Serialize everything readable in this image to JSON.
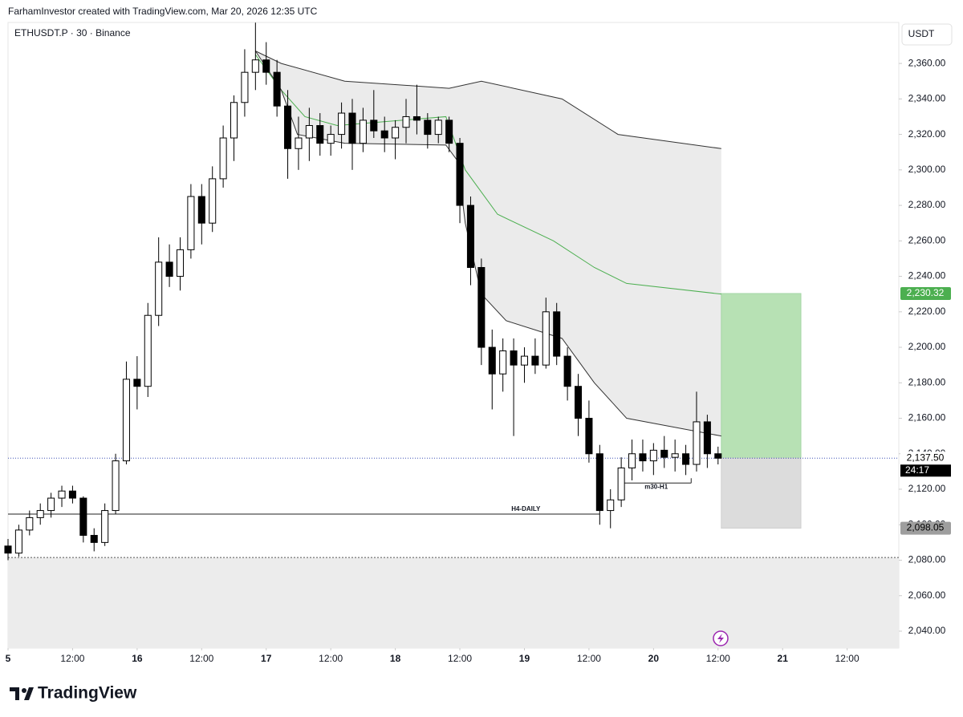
{
  "header": "FarhamInvestor created with TradingView.com, Mar 20, 2026 12:35 UTC",
  "brand": "TradingView",
  "chart_data": {
    "type": "candlestick",
    "title": "ETHUSDT.P · 30 · Binance",
    "currency": "USDT",
    "x": [
      0,
      1,
      2,
      3,
      4,
      5,
      6,
      7,
      8,
      9,
      10,
      11,
      12,
      13,
      14,
      15,
      16,
      17,
      18,
      19,
      20,
      21,
      22,
      23,
      24,
      25,
      26,
      27,
      28,
      29,
      30,
      31,
      32,
      33,
      34,
      35,
      36,
      37,
      38,
      39,
      40,
      41,
      42,
      43,
      44,
      45,
      46,
      47,
      48,
      49,
      50,
      51,
      52,
      53,
      54,
      55,
      56,
      57,
      58,
      59,
      60,
      61,
      62,
      63,
      64,
      65,
      66
    ],
    "ohlc": [
      [
        2088,
        2092,
        2080,
        2084
      ],
      [
        2084,
        2100,
        2082,
        2097
      ],
      [
        2097,
        2108,
        2094,
        2104
      ],
      [
        2104,
        2112,
        2100,
        2108
      ],
      [
        2108,
        2118,
        2104,
        2115
      ],
      [
        2115,
        2122,
        2110,
        2119
      ],
      [
        2119,
        2122,
        2112,
        2115
      ],
      [
        2115,
        2116,
        2090,
        2094
      ],
      [
        2094,
        2098,
        2085,
        2090
      ],
      [
        2090,
        2112,
        2088,
        2108
      ],
      [
        2108,
        2140,
        2106,
        2136
      ],
      [
        2136,
        2192,
        2134,
        2182
      ],
      [
        2182,
        2195,
        2165,
        2178
      ],
      [
        2178,
        2225,
        2172,
        2218
      ],
      [
        2218,
        2262,
        2212,
        2248
      ],
      [
        2248,
        2258,
        2234,
        2240
      ],
      [
        2240,
        2262,
        2232,
        2255
      ],
      [
        2255,
        2292,
        2250,
        2285
      ],
      [
        2285,
        2292,
        2258,
        2270
      ],
      [
        2270,
        2302,
        2265,
        2295
      ],
      [
        2295,
        2325,
        2290,
        2318
      ],
      [
        2318,
        2342,
        2305,
        2338
      ],
      [
        2338,
        2368,
        2330,
        2355
      ],
      [
        2355,
        2383,
        2345,
        2362
      ],
      [
        2362,
        2372,
        2348,
        2355
      ],
      [
        2355,
        2362,
        2330,
        2336
      ],
      [
        2336,
        2345,
        2295,
        2312
      ],
      [
        2312,
        2330,
        2300,
        2318
      ],
      [
        2318,
        2335,
        2305,
        2325
      ],
      [
        2325,
        2332,
        2308,
        2315
      ],
      [
        2315,
        2325,
        2308,
        2320
      ],
      [
        2320,
        2338,
        2312,
        2332
      ],
      [
        2332,
        2340,
        2300,
        2315
      ],
      [
        2315,
        2335,
        2310,
        2328
      ],
      [
        2328,
        2345,
        2318,
        2322
      ],
      [
        2322,
        2330,
        2310,
        2318
      ],
      [
        2318,
        2328,
        2306,
        2324
      ],
      [
        2324,
        2340,
        2315,
        2330
      ],
      [
        2330,
        2348,
        2320,
        2328
      ],
      [
        2328,
        2332,
        2312,
        2320
      ],
      [
        2320,
        2330,
        2315,
        2328
      ],
      [
        2328,
        2330,
        2310,
        2315
      ],
      [
        2315,
        2318,
        2270,
        2280
      ],
      [
        2280,
        2285,
        2235,
        2245
      ],
      [
        2245,
        2250,
        2190,
        2200
      ],
      [
        2200,
        2210,
        2165,
        2185
      ],
      [
        2185,
        2205,
        2175,
        2198
      ],
      [
        2198,
        2205,
        2150,
        2190
      ],
      [
        2190,
        2200,
        2180,
        2195
      ],
      [
        2195,
        2205,
        2185,
        2190
      ],
      [
        2190,
        2228,
        2188,
        2220
      ],
      [
        2220,
        2225,
        2190,
        2195
      ],
      [
        2195,
        2200,
        2170,
        2178
      ],
      [
        2178,
        2185,
        2150,
        2160
      ],
      [
        2160,
        2170,
        2135,
        2140
      ],
      [
        2140,
        2145,
        2100,
        2108
      ],
      [
        2108,
        2120,
        2098,
        2114
      ],
      [
        2114,
        2138,
        2110,
        2132
      ],
      [
        2132,
        2148,
        2125,
        2140
      ],
      [
        2140,
        2148,
        2130,
        2136
      ],
      [
        2136,
        2146,
        2128,
        2142
      ],
      [
        2142,
        2150,
        2132,
        2138
      ],
      [
        2138,
        2148,
        2130,
        2140
      ],
      [
        2140,
        2145,
        2128,
        2134
      ],
      [
        2134,
        2175,
        2130,
        2158
      ],
      [
        2158,
        2162,
        2132,
        2140
      ],
      [
        2140,
        2144,
        2134,
        2137.5
      ]
    ],
    "up_color": "#ffffff",
    "down_color": "#000000",
    "overlays": [
      {
        "color": "#333333",
        "x": [
          23,
          25.4,
          31.3,
          41,
          44,
          51.5,
          56.7,
          66.3
        ],
        "values": [
          2367,
          2360,
          2350,
          2346,
          2350,
          2340,
          2320,
          2312
        ]
      },
      {
        "color": "#4caf50",
        "x": [
          23,
          25.4,
          27.6,
          30.6,
          40.7,
          42.5,
          45.5,
          50.7,
          54.5,
          57.5,
          66.3
        ],
        "values": [
          2365,
          2345,
          2330,
          2325,
          2330,
          2300,
          2275,
          2260,
          2245,
          2236,
          2230
        ]
      },
      {
        "color": "#333333",
        "x": [
          23,
          25.4,
          26.9,
          31.3,
          40.7,
          41.8,
          42.5,
          44,
          46.3,
          51.5,
          54.5,
          57.5,
          66.3
        ],
        "values": [
          2367,
          2345,
          2320,
          2315,
          2314,
          2305,
          2270,
          2230,
          2215,
          2205,
          2180,
          2160,
          2150
        ]
      }
    ],
    "band_fill": "#ebebeb",
    "levels": [
      {
        "label": "H4-DAILY",
        "value": 2106,
        "x": [
          0,
          55
        ]
      },
      {
        "label": "m30-H1",
        "value": 2123.5,
        "x": [
          57,
          63.5
        ]
      }
    ],
    "zone_top": 2081.5,
    "position": {
      "x": [
        66.3,
        73.7
      ],
      "target": {
        "value": 2230.32,
        "label": "2,230.32"
      },
      "entry": {
        "value": 2137.5,
        "label": "2,137.50"
      },
      "stop": {
        "value": 2098.05,
        "label": "2,098.05"
      }
    },
    "countdown": "24:17",
    "xlim": [
      0,
      82.8
    ],
    "ylim": [
      2030.5,
      2383.1
    ],
    "xticks": [
      {
        "value": 0,
        "label": "5"
      },
      {
        "value": 6,
        "label": "12:00"
      },
      {
        "value": 12,
        "label": "16"
      },
      {
        "value": 18,
        "label": "12:00"
      },
      {
        "value": 24,
        "label": "17"
      },
      {
        "value": 30,
        "label": "12:00"
      },
      {
        "value": 36,
        "label": "18"
      },
      {
        "value": 42,
        "label": "12:00"
      },
      {
        "value": 48,
        "label": "19"
      },
      {
        "value": 54,
        "label": "12:00"
      },
      {
        "value": 60,
        "label": "20"
      },
      {
        "value": 66,
        "label": "12:00"
      },
      {
        "value": 72,
        "label": "21"
      },
      {
        "value": 78,
        "label": "12:00"
      }
    ],
    "yticks": [
      {
        "value": 2040,
        "label": "2,040.00"
      },
      {
        "value": 2060,
        "label": "2,060.00"
      },
      {
        "value": 2080,
        "label": "2,080.00"
      },
      {
        "value": 2100,
        "label": "2,100.00"
      },
      {
        "value": 2120,
        "label": "2,120.00"
      },
      {
        "value": 2140,
        "label": "2,140.00"
      },
      {
        "value": 2160,
        "label": "2,160.00"
      },
      {
        "value": 2180,
        "label": "2,180.00"
      },
      {
        "value": 2200,
        "label": "2,200.00"
      },
      {
        "value": 2220,
        "label": "2,220.00"
      },
      {
        "value": 2240,
        "label": "2,240.00"
      },
      {
        "value": 2260,
        "label": "2,260.00"
      },
      {
        "value": 2280,
        "label": "2,280.00"
      },
      {
        "value": 2300,
        "label": "2,300.00"
      },
      {
        "value": 2320,
        "label": "2,320.00"
      },
      {
        "value": 2340,
        "label": "2,340.00"
      },
      {
        "value": 2360,
        "label": "2,360.00"
      }
    ]
  }
}
